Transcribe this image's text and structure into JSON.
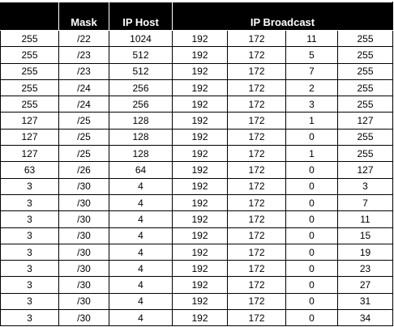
{
  "table": {
    "headers": {
      "col0": "",
      "mask": "Mask",
      "ip_host": "IP Host",
      "ip_broadcast": "IP Broadcast"
    },
    "rows": [
      [
        "255",
        "/22",
        "1024",
        "192",
        "172",
        "11",
        "255"
      ],
      [
        "255",
        "/23",
        "512",
        "192",
        "172",
        "5",
        "255"
      ],
      [
        "255",
        "/23",
        "512",
        "192",
        "172",
        "7",
        "255"
      ],
      [
        "255",
        "/24",
        "256",
        "192",
        "172",
        "2",
        "255"
      ],
      [
        "255",
        "/24",
        "256",
        "192",
        "172",
        "3",
        "255"
      ],
      [
        "127",
        "/25",
        "128",
        "192",
        "172",
        "1",
        "127"
      ],
      [
        "127",
        "/25",
        "128",
        "192",
        "172",
        "0",
        "255"
      ],
      [
        "127",
        "/25",
        "128",
        "192",
        "172",
        "1",
        "255"
      ],
      [
        "63",
        "/26",
        "64",
        "192",
        "172",
        "0",
        "127"
      ],
      [
        "3",
        "/30",
        "4",
        "192",
        "172",
        "0",
        "3"
      ],
      [
        "3",
        "/30",
        "4",
        "192",
        "172",
        "0",
        "7"
      ],
      [
        "3",
        "/30",
        "4",
        "192",
        "172",
        "0",
        "11"
      ],
      [
        "3",
        "/30",
        "4",
        "192",
        "172",
        "0",
        "15"
      ],
      [
        "3",
        "/30",
        "4",
        "192",
        "172",
        "0",
        "19"
      ],
      [
        "3",
        "/30",
        "4",
        "192",
        "172",
        "0",
        "23"
      ],
      [
        "3",
        "/30",
        "4",
        "192",
        "172",
        "0",
        "27"
      ],
      [
        "3",
        "/30",
        "4",
        "192",
        "172",
        "0",
        "31"
      ],
      [
        "3",
        "/30",
        "4",
        "192",
        "172",
        "0",
        "34"
      ]
    ]
  },
  "colors": {
    "header_bg": "#000000",
    "header_text": "#ffffff",
    "grid": "#000000"
  }
}
